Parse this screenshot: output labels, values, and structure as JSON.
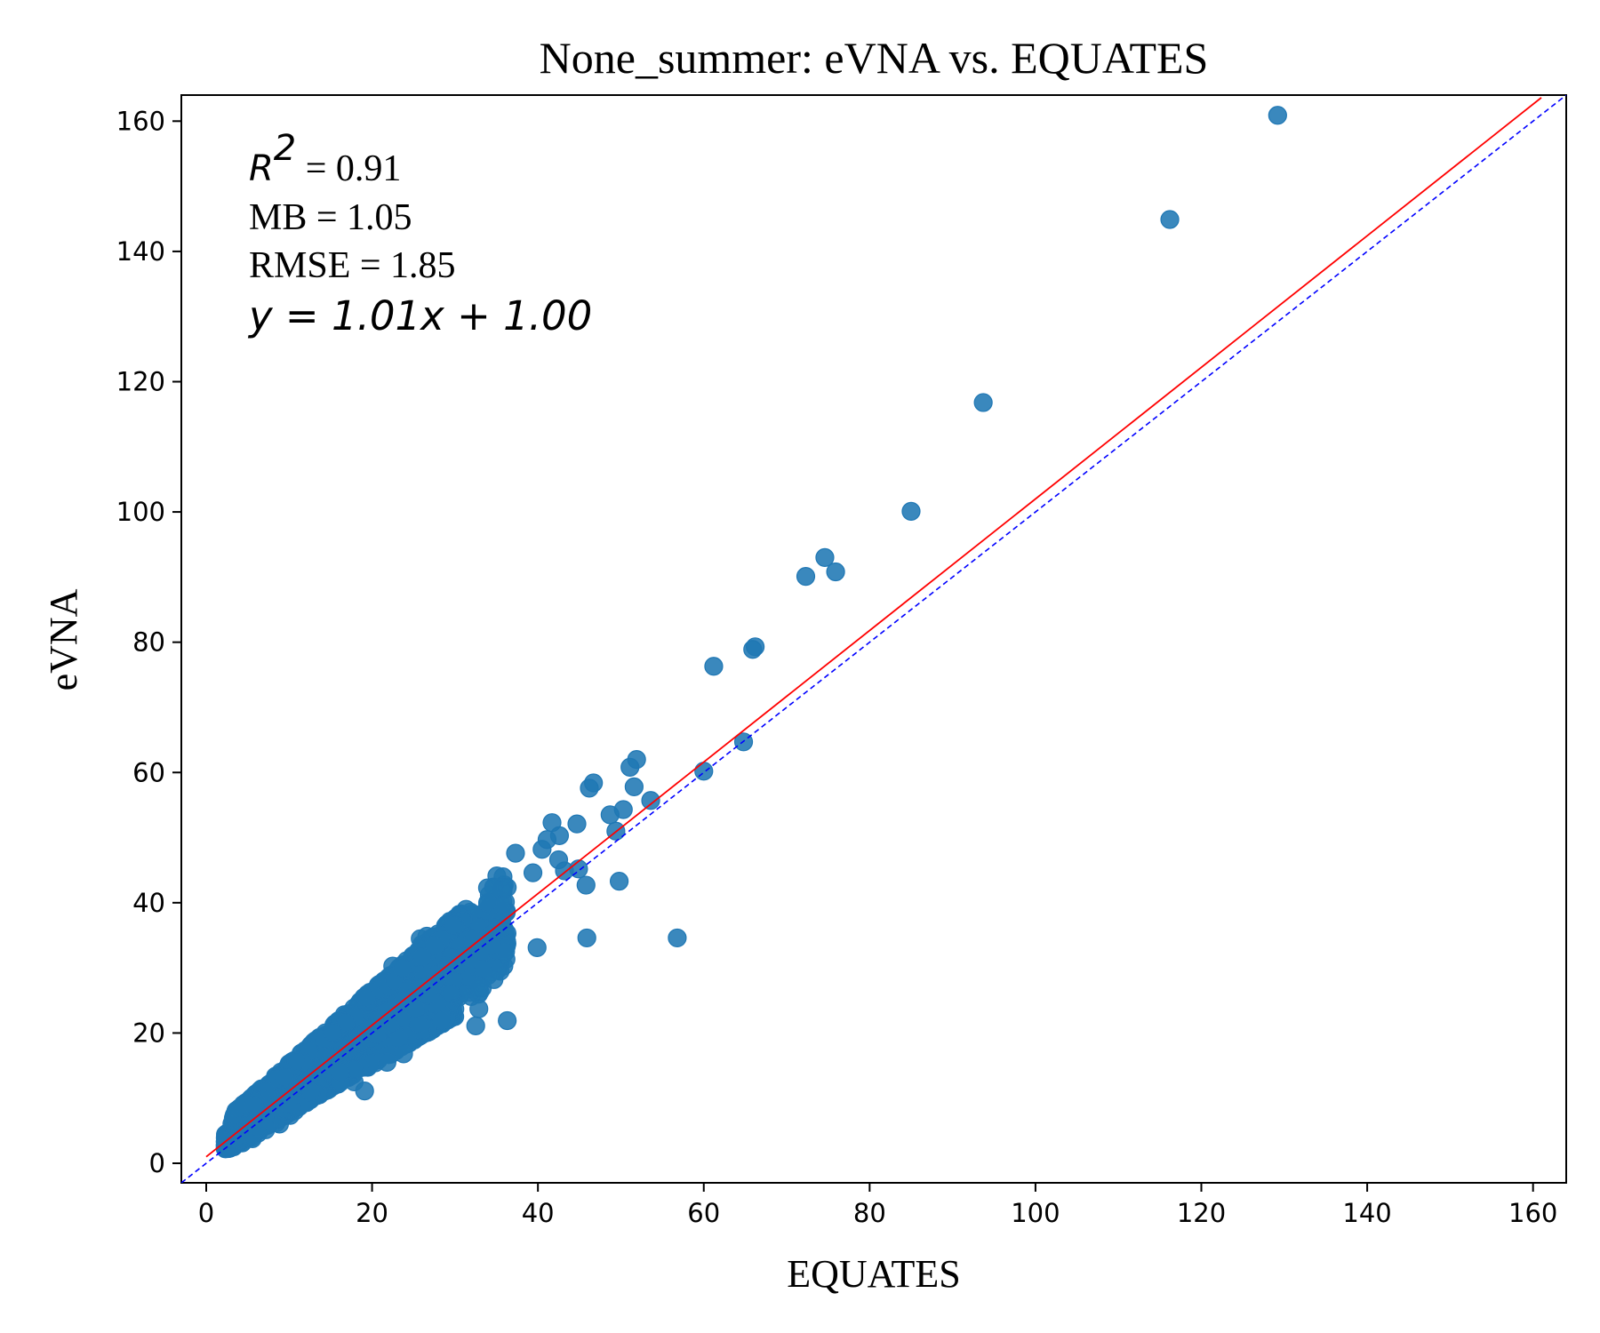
{
  "chart_data": {
    "type": "scatter",
    "title": "None_summer: eVNA vs. EQUATES",
    "xlabel": "EQUATES",
    "ylabel": "eVNA",
    "xlim": [
      -3,
      164
    ],
    "ylim": [
      -3,
      164
    ],
    "xticks": [
      0,
      20,
      40,
      60,
      80,
      100,
      120,
      140,
      160
    ],
    "yticks": [
      0,
      20,
      40,
      60,
      80,
      100,
      120,
      140,
      160
    ],
    "grid": false,
    "point_color": "#1f77b4",
    "fit_line_color": "#ff0000",
    "identity_line_color": "#0000ff",
    "fit_line": {
      "slope": 1.01,
      "intercept": 1.0,
      "x_range": [
        0,
        161
      ]
    },
    "identity_line": {
      "slope": 1,
      "intercept": 0
    },
    "annotations": {
      "r2_symbol": "R",
      "r2_exp": "2",
      "r2_value": " = 0.91",
      "mb": "MB = 1.05",
      "rmse": "RMSE = 1.85",
      "equation": "y = 1.01x + 1.00"
    },
    "outliers": {
      "x": [
        129.2,
        116.2,
        93.7,
        85.0,
        74.6,
        75.9,
        72.3,
        66.2,
        65.9,
        61.2,
        64.8,
        60.0,
        56.8,
        51.9,
        51.1,
        51.6,
        53.6,
        50.3,
        49.8,
        46.2,
        46.7,
        45.9,
        41.7,
        42.6,
        44.7,
        48.7,
        49.4,
        45.8,
        37.3,
        39.4,
        40.5,
        41.1,
        42.5,
        43.2,
        44.9,
        39.9,
        36.3,
        32.5,
        32.9,
        34.7,
        32.3,
        33.4,
        29.1,
        27.8,
        26.2,
        24.0,
        25.6,
        26.8,
        20.6,
        22.0,
        23.8,
        25.2,
        21.8,
        19.1
      ],
      "y": [
        160.9,
        144.9,
        116.8,
        100.1,
        93.0,
        90.8,
        90.1,
        79.3,
        78.9,
        76.3,
        64.7,
        60.2,
        34.6,
        62.0,
        60.8,
        57.8,
        55.7,
        54.3,
        43.3,
        57.6,
        58.4,
        34.6,
        52.3,
        50.3,
        52.1,
        53.5,
        51.0,
        42.7,
        47.6,
        44.6,
        48.2,
        49.7,
        46.6,
        44.9,
        45.2,
        33.1,
        21.9,
        21.1,
        27.0,
        28.2,
        30.3,
        29.8,
        30.3,
        24.5,
        26.3,
        22.1,
        21.4,
        25.8,
        19.8,
        16.7,
        16.8,
        23.7,
        15.5,
        11.1
      ]
    },
    "cluster_note": "dense cloud of points from x≈2 to x≈38 along y≈x"
  }
}
